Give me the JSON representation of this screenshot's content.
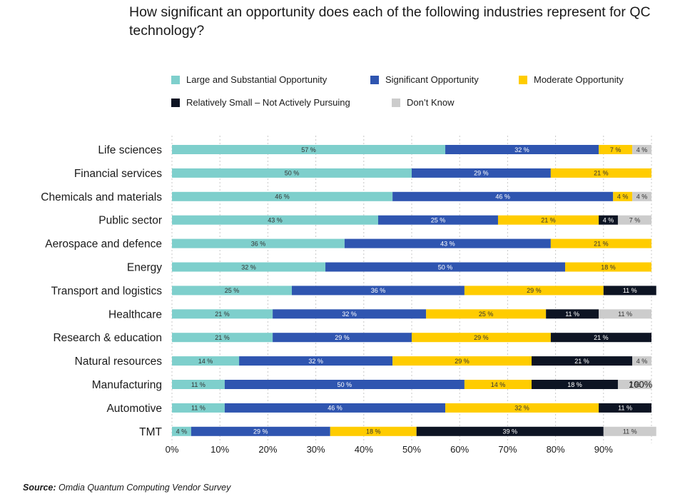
{
  "chart_data": {
    "type": "bar",
    "orientation": "horizontal",
    "stacked": true,
    "title": "How significant an opportunity does each of the following industries represent for QC technology?",
    "categories": [
      "Life sciences",
      "Financial services",
      "Chemicals and materials",
      "Public sector",
      "Aerospace and defence",
      "Energy",
      "Transport and logistics",
      "Healthcare",
      "Research & education",
      "Natural resources",
      "Manufacturing",
      "Automotive",
      "TMT"
    ],
    "series": [
      {
        "name": "Large and Substantial Opportunity",
        "color": "#7ecfcc",
        "label_color": "#333333",
        "values": [
          57,
          50,
          46,
          43,
          36,
          32,
          25,
          21,
          21,
          14,
          11,
          11,
          4
        ]
      },
      {
        "name": "Significant Opportunity",
        "color": "#2f55b0",
        "label_color": "#ffffff",
        "values": [
          32,
          29,
          46,
          25,
          43,
          50,
          36,
          32,
          29,
          32,
          50,
          46,
          29
        ]
      },
      {
        "name": "Moderate Opportunity",
        "color": "#ffcc00",
        "label_color": "#333333",
        "values": [
          7,
          21,
          4,
          21,
          21,
          18,
          29,
          25,
          29,
          29,
          14,
          32,
          18
        ]
      },
      {
        "name": "Relatively Small – Not Actively Pursuing",
        "color": "#0d1423",
        "label_color": "#ffffff",
        "values": [
          0,
          0,
          0,
          4,
          0,
          0,
          11,
          11,
          21,
          21,
          18,
          11,
          39
        ]
      },
      {
        "name": "Don’t Know",
        "color": "#cccccc",
        "label_color": "#333333",
        "values": [
          4,
          0,
          4,
          7,
          0,
          0,
          0,
          11,
          0,
          4,
          7,
          0,
          11
        ]
      }
    ],
    "value_suffix": " %",
    "annotations": [
      {
        "category": "Manufacturing",
        "text": "100%"
      }
    ],
    "xlim": [
      0,
      100
    ],
    "xticks": [
      "0%",
      "10%",
      "20%",
      "30%",
      "40%",
      "50%",
      "60%",
      "70%",
      "80%",
      "90%"
    ],
    "legend_position": "top",
    "grid": "vertical dashed"
  },
  "source": {
    "label": "Source:",
    "text": "Omdia Quantum Computing Vendor Survey"
  }
}
